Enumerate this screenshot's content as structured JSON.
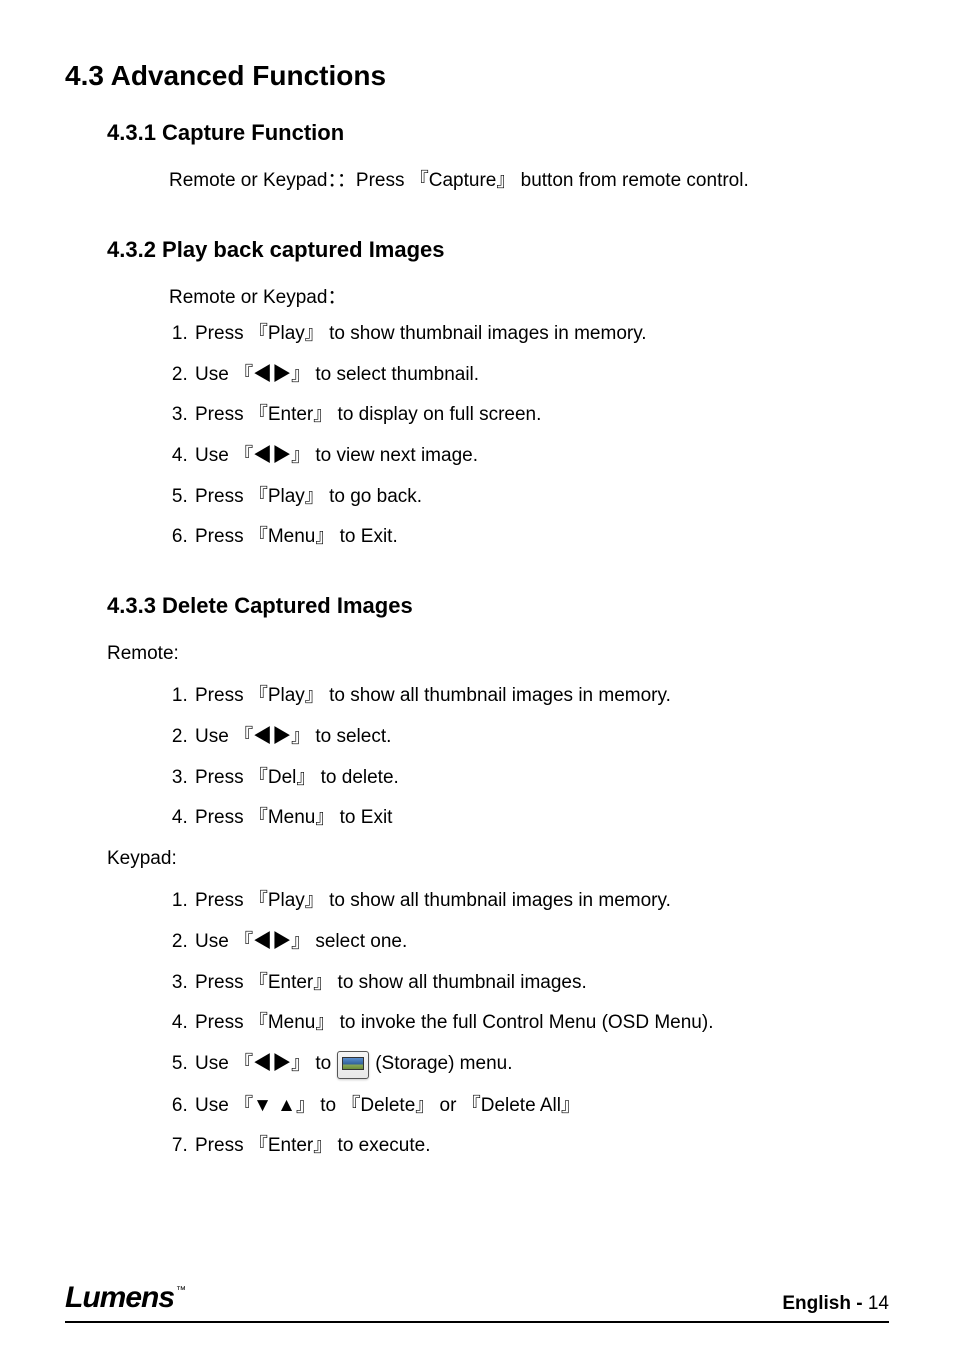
{
  "colors": {
    "text": "#000000",
    "background": "#ffffff",
    "rule": "#000000"
  },
  "typography": {
    "h1_fontsize": 28,
    "h2_fontsize": 22,
    "body_fontsize": 19,
    "font_family": "Arial"
  },
  "heading": "4.3  Advanced Functions",
  "sections": [
    {
      "number": "4.3.1",
      "title": "4.3.1  Capture Function",
      "intro": "Remote or Keypad：：Press 『Capture』 button from remote control."
    },
    {
      "number": "4.3.2",
      "title": "4.3.2  Play back captured Images",
      "intro": "Remote or Keypad：",
      "steps": [
        "Press 『Play』 to show thumbnail images in memory.",
        "Use 『◀▶』 to select thumbnail.",
        "Press 『Enter』 to display on full screen.",
        "Use 『◀▶』 to view next image.",
        "Press 『Play』 to go back.",
        "Press 『Menu』 to Exit."
      ]
    },
    {
      "number": "4.3.3",
      "title": "4.3.3  Delete Captured Images",
      "remote_label": "Remote:",
      "remote_steps": [
        "Press 『Play』  to show all thumbnail images in memory.",
        "Use 『◀▶』 to select.",
        "Press 『Del』 to delete.",
        "Press 『Menu』 to Exit"
      ],
      "keypad_label": "Keypad:",
      "keypad_steps": [
        "Press 『Play』  to show all thumbnail images in memory.",
        "Use 『◀▶』 select one.",
        "Press 『Enter』 to show all thumbnail images.",
        "Press 『Menu』 to invoke the full Control Menu (OSD Menu).",
        {
          "pre": "Use 『◀▶』 to ",
          "icon": "storage",
          "post": " (Storage) menu."
        },
        "Use 『▼ ▲』 to 『Delete』 or  『Delete All』",
        "Press 『Enter』 to execute."
      ]
    }
  ],
  "footer": {
    "logo_text": "Lumens",
    "logo_tm": "™",
    "language_label": "English  -",
    "page_number": "14"
  }
}
